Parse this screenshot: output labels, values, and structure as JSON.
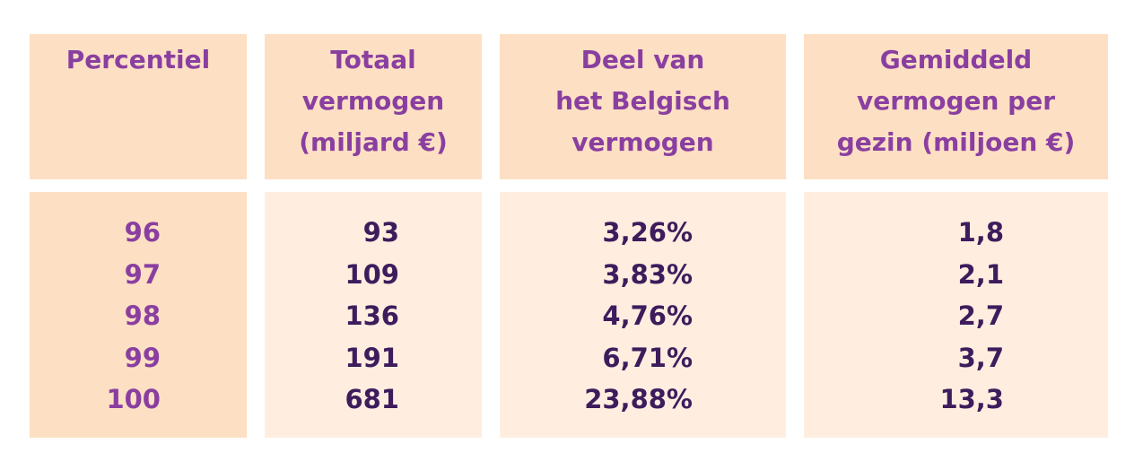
{
  "chart_data": {
    "type": "table",
    "columns": [
      "Percentiel",
      "Totaal\nvermogen\n(miljard €)",
      "Deel van\nhet Belgisch\nvermogen",
      "Gemiddeld\nvermogen per\ngezin (miljoen €)"
    ],
    "rows": [
      [
        "96",
        "93",
        "3,26%",
        "1,8"
      ],
      [
        "97",
        "109",
        "3,83%",
        "2,1"
      ],
      [
        "98",
        "136",
        "4,76%",
        "2,7"
      ],
      [
        "99",
        "191",
        "6,71%",
        "3,7"
      ],
      [
        "100",
        "681",
        "23,88%",
        "13,3"
      ]
    ]
  },
  "colors": {
    "header_bg": "#fde0c4",
    "cell_bg": "#ffeee0",
    "header_text": "#8a3fa0",
    "value_text": "#3e1c5c"
  }
}
